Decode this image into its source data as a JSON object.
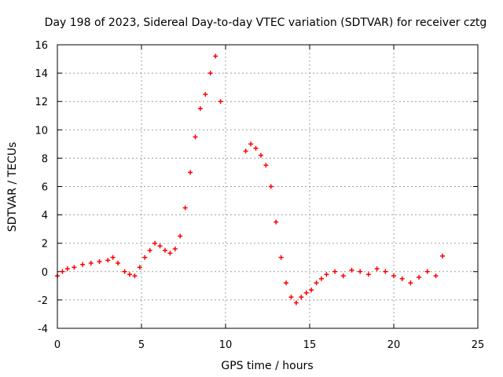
{
  "chart_data": {
    "type": "scatter",
    "title": "Day 198 of 2023, Sidereal Day-to-day VTEC variation (SDTVAR) for receiver cztg",
    "xlabel": "GPS time / hours",
    "ylabel": "SDTVAR / TECUs",
    "xlim": [
      0,
      25
    ],
    "ylim": [
      -4,
      16
    ],
    "xticks": [
      0,
      5,
      10,
      15,
      20,
      25
    ],
    "yticks": [
      -4,
      -2,
      0,
      2,
      4,
      6,
      8,
      10,
      12,
      14,
      16
    ],
    "xtick_labels": [
      "0",
      "5",
      "10",
      "15",
      "20",
      "25"
    ],
    "ytick_labels": [
      "-4",
      "-2",
      "0",
      "2",
      "4",
      "6",
      "8",
      "10",
      "12",
      "14",
      "16"
    ],
    "grid": true,
    "marker": "+",
    "color": "#ff0000",
    "series": [
      {
        "name": "SDTVAR",
        "x": [
          0.0,
          0.3,
          0.6,
          1.0,
          1.5,
          2.0,
          2.5,
          3.0,
          3.3,
          3.6,
          4.0,
          4.3,
          4.6,
          4.9,
          5.2,
          5.5,
          5.8,
          6.1,
          6.4,
          6.7,
          7.0,
          7.3,
          7.6,
          7.9,
          8.2,
          8.5,
          8.8,
          9.1,
          9.4,
          9.7,
          11.2,
          11.5,
          11.8,
          12.1,
          12.4,
          12.7,
          13.0,
          13.3,
          13.6,
          13.9,
          14.2,
          14.5,
          14.8,
          15.1,
          15.4,
          15.7,
          16.0,
          16.5,
          17.0,
          17.5,
          18.0,
          18.5,
          19.0,
          19.5,
          20.0,
          20.5,
          21.0,
          21.5,
          22.0,
          22.5,
          22.9
        ],
        "y": [
          -0.3,
          0.0,
          0.2,
          0.3,
          0.5,
          0.6,
          0.7,
          0.8,
          1.0,
          0.6,
          0.0,
          -0.2,
          -0.3,
          0.3,
          1.0,
          1.5,
          2.0,
          1.8,
          1.5,
          1.3,
          1.6,
          2.5,
          4.5,
          7.0,
          9.5,
          11.5,
          12.5,
          14.0,
          15.2,
          12.0,
          8.5,
          9.0,
          8.7,
          8.2,
          7.5,
          6.0,
          3.5,
          1.0,
          -0.8,
          -1.8,
          -2.2,
          -1.8,
          -1.5,
          -1.3,
          -0.8,
          -0.5,
          -0.2,
          0.0,
          -0.3,
          0.1,
          0.0,
          -0.2,
          0.2,
          0.0,
          -0.3,
          -0.5,
          -0.8,
          -0.4,
          0.0,
          -0.3,
          1.1
        ]
      }
    ]
  }
}
